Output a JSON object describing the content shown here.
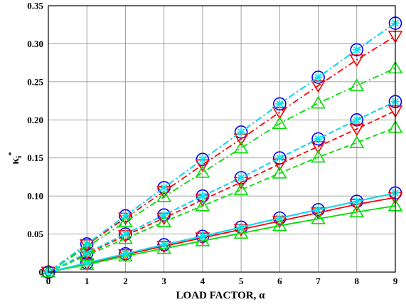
{
  "chart_data": {
    "type": "line",
    "xlabel": "LOAD FACTOR, α",
    "ylabel": "κ",
    "ylabel_sub": "i",
    "ylabel_sup": "*",
    "xlim": [
      0,
      9
    ],
    "ylim": [
      0,
      0.35
    ],
    "grid": true,
    "x_ticks": [
      0,
      1,
      2,
      3,
      4,
      5,
      6,
      7,
      8,
      9
    ],
    "x_tick_labels": [
      "0",
      "1",
      "2",
      "3",
      "4",
      "5",
      "6",
      "7",
      "8",
      "9"
    ],
    "y_ticks": [
      0,
      0.05,
      0.1,
      0.15,
      0.2,
      0.25,
      0.3,
      0.35
    ],
    "y_tick_labels": [
      "0",
      "0.05",
      "0.10",
      "0.15",
      "0.20",
      "0.25",
      "0.30",
      "0.35"
    ],
    "colors": {
      "black": "#000000",
      "blue": "#0000ff",
      "red": "#ff0000",
      "green": "#00dd00",
      "cyan": "#00e5ee"
    },
    "x": [
      0,
      1,
      2,
      3,
      4,
      5,
      6,
      7,
      8,
      9
    ],
    "series": [
      {
        "color": "black",
        "style": "solid",
        "marker": "none",
        "values": [
          0,
          0.012,
          0.024,
          0.036,
          0.047,
          0.059,
          0.071,
          0.082,
          0.093,
          0.104
        ]
      },
      {
        "color": "blue",
        "style": "solid",
        "marker": "circle",
        "values": [
          0,
          0.012,
          0.024,
          0.036,
          0.047,
          0.059,
          0.071,
          0.082,
          0.093,
          0.104
        ]
      },
      {
        "color": "red",
        "style": "solid",
        "marker": "triangle-down",
        "values": [
          0,
          0.011,
          0.023,
          0.034,
          0.045,
          0.056,
          0.067,
          0.078,
          0.089,
          0.098
        ]
      },
      {
        "color": "green",
        "style": "solid",
        "marker": "triangle-up",
        "values": [
          0,
          0.01,
          0.021,
          0.031,
          0.041,
          0.051,
          0.061,
          0.07,
          0.079,
          0.087
        ]
      },
      {
        "color": "cyan",
        "style": "solid",
        "marker": "star",
        "values": [
          0,
          0.012,
          0.024,
          0.036,
          0.047,
          0.059,
          0.071,
          0.082,
          0.093,
          0.104
        ]
      },
      {
        "color": "black",
        "style": "dashed",
        "marker": "none",
        "values": [
          0,
          0.025,
          0.05,
          0.075,
          0.1,
          0.124,
          0.15,
          0.175,
          0.2,
          0.224
        ]
      },
      {
        "color": "blue",
        "style": "dashed",
        "marker": "circle",
        "values": [
          0,
          0.025,
          0.05,
          0.075,
          0.1,
          0.124,
          0.15,
          0.175,
          0.2,
          0.224
        ]
      },
      {
        "color": "red",
        "style": "dashed",
        "marker": "triangle-down",
        "values": [
          0,
          0.024,
          0.048,
          0.071,
          0.095,
          0.118,
          0.142,
          0.165,
          0.188,
          0.212
        ]
      },
      {
        "color": "green",
        "style": "dashed",
        "marker": "triangle-up",
        "values": [
          0,
          0.022,
          0.044,
          0.066,
          0.087,
          0.108,
          0.13,
          0.151,
          0.17,
          0.19
        ]
      },
      {
        "color": "cyan",
        "style": "dashed",
        "marker": "star",
        "values": [
          0,
          0.025,
          0.05,
          0.075,
          0.1,
          0.124,
          0.15,
          0.175,
          0.2,
          0.224
        ]
      },
      {
        "color": "black",
        "style": "dashdot",
        "marker": "none",
        "values": [
          0,
          0.037,
          0.074,
          0.111,
          0.148,
          0.184,
          0.221,
          0.256,
          0.292,
          0.327
        ]
      },
      {
        "color": "blue",
        "style": "dashdot",
        "marker": "circle",
        "values": [
          0,
          0.037,
          0.074,
          0.111,
          0.148,
          0.184,
          0.221,
          0.256,
          0.292,
          0.327
        ]
      },
      {
        "color": "red",
        "style": "dashdot",
        "marker": "triangle-down",
        "values": [
          0,
          0.036,
          0.071,
          0.106,
          0.141,
          0.175,
          0.21,
          0.245,
          0.279,
          0.31
        ]
      },
      {
        "color": "green",
        "style": "dashdot",
        "marker": "triangle-up",
        "values": [
          0,
          0.033,
          0.066,
          0.099,
          0.131,
          0.163,
          0.195,
          0.222,
          0.245,
          0.268
        ]
      },
      {
        "color": "cyan",
        "style": "dashdot",
        "marker": "star",
        "values": [
          0,
          0.037,
          0.074,
          0.111,
          0.148,
          0.184,
          0.221,
          0.256,
          0.292,
          0.327
        ]
      }
    ]
  }
}
